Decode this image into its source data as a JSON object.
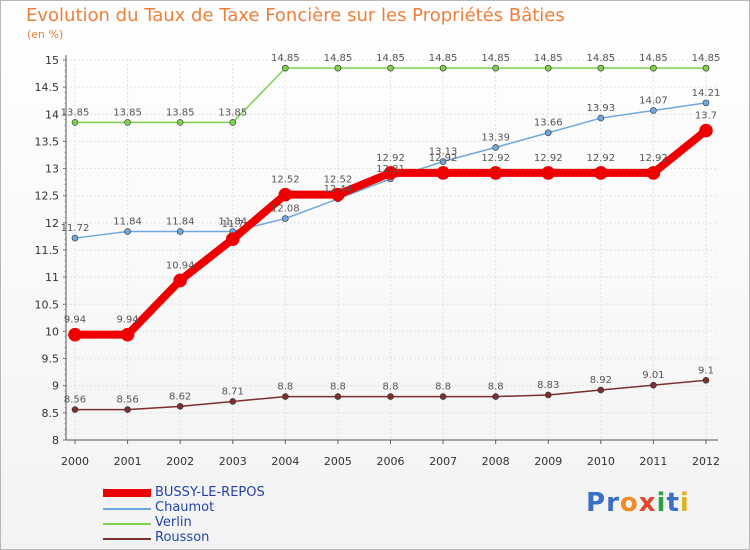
{
  "title": "Evolution du Taux de Taxe Foncière sur les Propriétés Bâties",
  "unit": "(en %)",
  "logo": "Proxiti",
  "chart_data": {
    "type": "line",
    "x": [
      "2000",
      "2001",
      "2002",
      "2003",
      "2004",
      "2005",
      "2006",
      "2007",
      "2008",
      "2009",
      "2010",
      "2011",
      "2012"
    ],
    "ylim": [
      8,
      15
    ],
    "yticks": [
      "8",
      "8.5",
      "9",
      "9.5",
      "10",
      "10.5",
      "11",
      "11.5",
      "12",
      "12.5",
      "13",
      "13.5",
      "14",
      "14.5",
      "15"
    ],
    "series": [
      {
        "name": "Verlin",
        "color": "#7fd14d",
        "width": 1.5,
        "values": [
          13.85,
          13.85,
          13.85,
          13.85,
          14.85,
          14.85,
          14.85,
          14.85,
          14.85,
          14.85,
          14.85,
          14.85,
          14.85
        ],
        "labels": [
          "13.85",
          "13.85",
          "13.85",
          "13.85",
          "14.85",
          "14.85",
          "14.85",
          "14.85",
          "14.85",
          "14.85",
          "14.85",
          "14.85",
          "14.85"
        ]
      },
      {
        "name": "Chaumot",
        "color": "#6fa8dc",
        "width": 1.5,
        "values": [
          11.72,
          11.84,
          11.84,
          11.84,
          12.08,
          12.44,
          12.81,
          13.13,
          13.39,
          13.66,
          13.93,
          14.07,
          14.21
        ],
        "labels": [
          "11.72",
          "11.84",
          "11.84",
          "11.84",
          "12.08",
          "12.44",
          "12.81",
          "13.13",
          "13.39",
          "13.66",
          "13.93",
          "14.07",
          "14.21"
        ]
      },
      {
        "name": "Rousson",
        "color": "#7a3030",
        "width": 1.5,
        "values": [
          8.56,
          8.56,
          8.62,
          8.71,
          8.8,
          8.8,
          8.8,
          8.8,
          8.8,
          8.83,
          8.92,
          9.01,
          9.1
        ],
        "labels": [
          "8.56",
          "8.56",
          "8.62",
          "8.71",
          "8.8",
          "8.8",
          "8.8",
          "8.8",
          "8.8",
          "8.83",
          "8.92",
          "9.01",
          "9.1"
        ]
      },
      {
        "name": "BUSSY-LE-REPOS",
        "color": "#ee0000",
        "width": 8,
        "values": [
          9.94,
          9.94,
          10.94,
          11.7,
          12.52,
          12.52,
          12.92,
          12.92,
          12.92,
          12.92,
          12.92,
          12.92,
          13.7
        ],
        "labels": [
          "9.94",
          "9.94",
          "10.94",
          "11.7",
          "12.52",
          "12.52",
          "12.92",
          "12.92",
          "12.92",
          "12.92",
          "12.92",
          "12.92",
          "13.7"
        ]
      }
    ],
    "legend": [
      "BUSSY-LE-REPOS",
      "Chaumot",
      "Verlin",
      "Rousson"
    ]
  }
}
